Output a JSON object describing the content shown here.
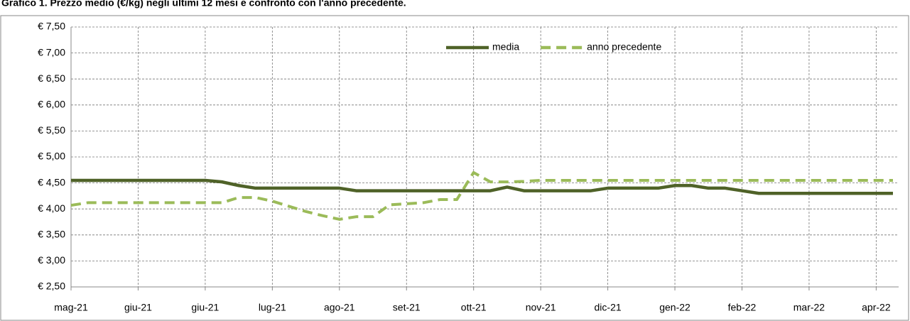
{
  "chart_data": {
    "type": "line",
    "title": "Grafico 1. Prezzo medio  (€/kg) negli ultimi 12 mesi e confronto con l'anno precedente.",
    "categories": [
      "mag-21",
      null,
      null,
      null,
      "giu-21",
      null,
      null,
      null,
      "giu-21",
      null,
      null,
      null,
      "lug-21",
      null,
      null,
      null,
      "ago-21",
      null,
      null,
      null,
      "set-21",
      null,
      null,
      null,
      "ott-21",
      null,
      null,
      null,
      "nov-21",
      null,
      null,
      null,
      "dic-21",
      null,
      null,
      null,
      "gen-22",
      null,
      null,
      null,
      "feb-22",
      null,
      null,
      null,
      "mar-22",
      null,
      null,
      null,
      "apr-22",
      null
    ],
    "series": [
      {
        "name": "media",
        "color": "#4f6228",
        "dashed": false,
        "values": [
          4.55,
          4.55,
          4.55,
          4.55,
          4.55,
          4.55,
          4.55,
          4.55,
          4.55,
          4.52,
          4.45,
          4.4,
          4.4,
          4.4,
          4.4,
          4.4,
          4.4,
          4.35,
          4.35,
          4.35,
          4.35,
          4.35,
          4.35,
          4.35,
          4.35,
          4.35,
          4.42,
          4.35,
          4.35,
          4.35,
          4.35,
          4.35,
          4.4,
          4.4,
          4.4,
          4.4,
          4.45,
          4.45,
          4.4,
          4.4,
          4.35,
          4.3,
          4.3,
          4.3,
          4.3,
          4.3,
          4.3,
          4.3,
          4.3,
          4.3
        ]
      },
      {
        "name": "anno precedente",
        "color": "#9bbb59",
        "dashed": true,
        "values": [
          4.07,
          4.12,
          4.12,
          4.12,
          4.12,
          4.12,
          4.12,
          4.12,
          4.12,
          4.12,
          4.22,
          4.22,
          4.15,
          4.05,
          3.95,
          3.87,
          3.8,
          3.85,
          3.85,
          4.08,
          4.1,
          4.12,
          4.18,
          4.18,
          4.7,
          4.52,
          4.52,
          4.53,
          4.55,
          4.55,
          4.55,
          4.55,
          4.55,
          4.55,
          4.55,
          4.55,
          4.55,
          4.55,
          4.55,
          4.55,
          4.55,
          4.55,
          4.55,
          4.55,
          4.55,
          4.55,
          4.55,
          4.55,
          4.55,
          4.55
        ]
      }
    ],
    "ylim": [
      2.5,
      7.5
    ],
    "yticks": [
      {
        "value": 2.5,
        "label": "€ 2,50"
      },
      {
        "value": 3,
        "label": "€ 3,00"
      },
      {
        "value": 3.5,
        "label": "€ 3,50"
      },
      {
        "value": 4,
        "label": "€ 4,00"
      },
      {
        "value": 4.5,
        "label": "€ 4,50"
      },
      {
        "value": 5,
        "label": "€ 5,00"
      },
      {
        "value": 5.5,
        "label": "€ 5,50"
      },
      {
        "value": 6,
        "label": "€ 6,00"
      },
      {
        "value": 6.5,
        "label": "€ 6,50"
      },
      {
        "value": 7,
        "label": "€ 7,00"
      },
      {
        "value": 7.5,
        "label": "€ 7,50"
      }
    ],
    "grid": true,
    "legend": "top"
  }
}
